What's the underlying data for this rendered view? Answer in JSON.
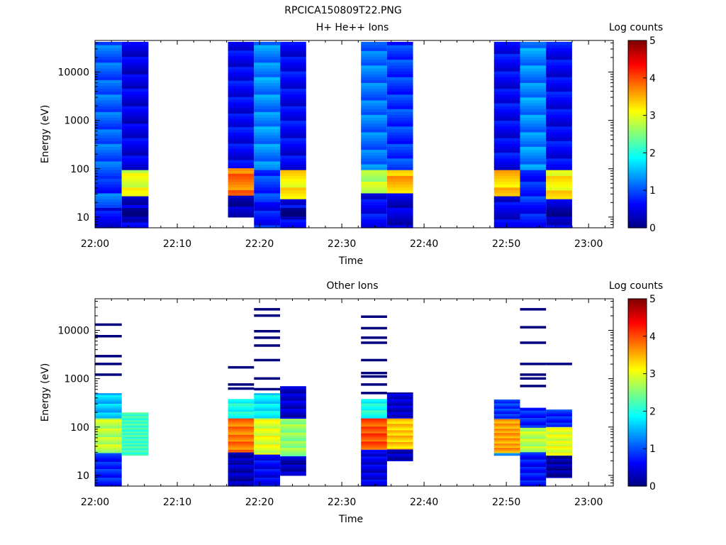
{
  "page_title": "RPCICA150809T22.PNG",
  "colorbar": {
    "label": "Log counts",
    "ticks": [
      "0",
      "1",
      "2",
      "3",
      "4",
      "5"
    ],
    "stops": [
      "#00007f",
      "#0000ff",
      "#007fff",
      "#00ffff",
      "#7fff7f",
      "#ffff00",
      "#ff7f00",
      "#ff0000",
      "#7f0000"
    ]
  },
  "chart_data": [
    {
      "type": "heatmap",
      "title": "H+ He++ Ions",
      "xlabel": "Time",
      "ylabel": "Energy (eV)",
      "yscale": "log",
      "ylim": [
        6,
        45000
      ],
      "xlim": [
        "22:00",
        "23:03"
      ],
      "clim": [
        0,
        5
      ],
      "x_ticks": [
        "22:00",
        "22:10",
        "22:20",
        "22:30",
        "22:40",
        "22:50",
        "23:00"
      ],
      "y_ticks": [
        "10",
        "100",
        "1000",
        "10000"
      ],
      "colorbar_label": "Log counts",
      "columns": [
        {
          "t_start": "22:00:00",
          "t_end": "22:03:15",
          "e_min": 6,
          "e_max": 42000,
          "bands": [
            {
              "e": [
                6,
                40000
              ],
              "v": 1.1
            },
            {
              "e": [
                30,
                60
              ],
              "v": 0.8
            },
            {
              "e": [
                6,
                15
              ],
              "v": 0.6
            }
          ]
        },
        {
          "t_start": "22:03:15",
          "t_end": "22:06:30",
          "e_min": 6,
          "e_max": 42000,
          "bands": [
            {
              "e": [
                100,
                40000
              ],
              "v": 0.5
            },
            {
              "e": [
                28,
                100
              ],
              "v": 3.0
            },
            {
              "e": [
                15,
                28
              ],
              "v": 0.4
            },
            {
              "e": [
                6,
                10
              ],
              "v": 0.5
            }
          ]
        },
        {
          "t_start": "22:16:10",
          "t_end": "22:19:20",
          "e_min": 10,
          "e_max": 42000,
          "bands": [
            {
              "e": [
                100,
                40000
              ],
              "v": 0.6
            },
            {
              "e": [
                30,
                100
              ],
              "v": 3.8
            },
            {
              "e": [
                10,
                30
              ],
              "v": 0.3
            }
          ]
        },
        {
          "t_start": "22:19:20",
          "t_end": "22:22:30",
          "e_min": 6,
          "e_max": 42000,
          "bands": [
            {
              "e": [
                100,
                40000
              ],
              "v": 1.3
            },
            {
              "e": [
                20,
                100
              ],
              "v": 0.9
            },
            {
              "e": [
                6,
                20
              ],
              "v": 0.7
            }
          ]
        },
        {
          "t_start": "22:22:30",
          "t_end": "22:25:40",
          "e_min": 6,
          "e_max": 42000,
          "bands": [
            {
              "e": [
                100,
                40000
              ],
              "v": 0.6
            },
            {
              "e": [
                25,
                100
              ],
              "v": 3.2
            },
            {
              "e": [
                15,
                25
              ],
              "v": 0.6
            },
            {
              "e": [
                6,
                10
              ],
              "v": 0.5
            }
          ]
        },
        {
          "t_start": "22:32:20",
          "t_end": "22:35:30",
          "e_min": 6,
          "e_max": 42000,
          "bands": [
            {
              "e": [
                100,
                40000
              ],
              "v": 1.2
            },
            {
              "e": [
                30,
                100
              ],
              "v": 2.8
            },
            {
              "e": [
                6,
                30
              ],
              "v": 0.6
            }
          ]
        },
        {
          "t_start": "22:35:30",
          "t_end": "22:38:40",
          "e_min": 6,
          "e_max": 42000,
          "bands": [
            {
              "e": [
                100,
                40000
              ],
              "v": 0.9
            },
            {
              "e": [
                30,
                100
              ],
              "v": 3.5
            },
            {
              "e": [
                6,
                30
              ],
              "v": 0.4
            }
          ]
        },
        {
          "t_start": "22:48:30",
          "t_end": "22:51:40",
          "e_min": 6,
          "e_max": 42000,
          "bands": [
            {
              "e": [
                100,
                40000
              ],
              "v": 0.6
            },
            {
              "e": [
                28,
                100
              ],
              "v": 3.4
            },
            {
              "e": [
                6,
                28
              ],
              "v": 0.5
            }
          ]
        },
        {
          "t_start": "22:51:40",
          "t_end": "22:54:50",
          "e_min": 6,
          "e_max": 42000,
          "bands": [
            {
              "e": [
                100,
                40000
              ],
              "v": 1.3
            },
            {
              "e": [
                20,
                100
              ],
              "v": 0.8
            },
            {
              "e": [
                6,
                20
              ],
              "v": 0.7
            }
          ]
        },
        {
          "t_start": "22:54:50",
          "t_end": "22:58:00",
          "e_min": 6,
          "e_max": 42000,
          "bands": [
            {
              "e": [
                100,
                40000
              ],
              "v": 0.6
            },
            {
              "e": [
                25,
                100
              ],
              "v": 3.2
            },
            {
              "e": [
                15,
                25
              ],
              "v": 0.6
            },
            {
              "e": [
                6,
                10
              ],
              "v": 0.5
            }
          ]
        }
      ]
    },
    {
      "type": "heatmap",
      "title": "Other Ions",
      "xlabel": "Time",
      "ylabel": "Energy (eV)",
      "yscale": "log",
      "ylim": [
        6,
        45000
      ],
      "xlim": [
        "22:00",
        "23:03"
      ],
      "clim": [
        0,
        5
      ],
      "x_ticks": [
        "22:00",
        "22:10",
        "22:20",
        "22:30",
        "22:40",
        "22:50",
        "23:00"
      ],
      "y_ticks": [
        "10",
        "100",
        "1000",
        "10000"
      ],
      "colorbar_label": "Log counts",
      "columns": [
        {
          "t_start": "22:00:00",
          "t_end": "22:03:15",
          "e_min": 6,
          "e_max": 500,
          "bands": [
            {
              "e": [
                150,
                500
              ],
              "v": 1.6
            },
            {
              "e": [
                30,
                150
              ],
              "v": 2.8
            },
            {
              "e": [
                6,
                30
              ],
              "v": 0.8
            }
          ],
          "lines": [
            13000,
            7500,
            2900,
            2000,
            1200
          ]
        },
        {
          "t_start": "22:03:15",
          "t_end": "22:06:30",
          "e_min": 26,
          "e_max": 200,
          "bands": [
            {
              "e": [
                26,
                200
              ],
              "v": 2.2
            }
          ]
        },
        {
          "t_start": "22:16:10",
          "t_end": "22:19:20",
          "e_min": 6,
          "e_max": 380,
          "bands": [
            {
              "e": [
                150,
                380
              ],
              "v": 2.0
            },
            {
              "e": [
                30,
                150
              ],
              "v": 3.8
            },
            {
              "e": [
                6,
                30
              ],
              "v": 0.3
            }
          ],
          "lines": [
            1700,
            750,
            620
          ]
        },
        {
          "t_start": "22:19:20",
          "t_end": "22:22:30",
          "e_min": 6,
          "e_max": 500,
          "bands": [
            {
              "e": [
                150,
                500
              ],
              "v": 1.8
            },
            {
              "e": [
                28,
                150
              ],
              "v": 3.0
            },
            {
              "e": [
                6,
                28
              ],
              "v": 0.6
            }
          ],
          "lines": [
            27000,
            20000,
            9500,
            7000,
            4800,
            2400,
            1000,
            600
          ]
        },
        {
          "t_start": "22:22:30",
          "t_end": "22:25:40",
          "e_min": 10,
          "e_max": 700,
          "bands": [
            {
              "e": [
                150,
                700
              ],
              "v": 0.4
            },
            {
              "e": [
                26,
                150
              ],
              "v": 2.6
            },
            {
              "e": [
                10,
                26
              ],
              "v": 0.3
            }
          ]
        },
        {
          "t_start": "22:32:20",
          "t_end": "22:35:30",
          "e_min": 6,
          "e_max": 380,
          "bands": [
            {
              "e": [
                150,
                380
              ],
              "v": 2.0
            },
            {
              "e": [
                35,
                150
              ],
              "v": 4.0
            },
            {
              "e": [
                6,
                35
              ],
              "v": 0.5
            }
          ],
          "lines": [
            19000,
            11000,
            7000,
            5500,
            2400,
            1300,
            1100,
            750,
            500
          ]
        },
        {
          "t_start": "22:35:30",
          "t_end": "22:38:40",
          "e_min": 20,
          "e_max": 520,
          "bands": [
            {
              "e": [
                150,
                520
              ],
              "v": 0.4
            },
            {
              "e": [
                35,
                150
              ],
              "v": 3.4
            },
            {
              "e": [
                20,
                35
              ],
              "v": 0.3
            }
          ]
        },
        {
          "t_start": "22:48:30",
          "t_end": "22:51:40",
          "e_min": 26,
          "e_max": 370,
          "bands": [
            {
              "e": [
                150,
                370
              ],
              "v": 0.9
            },
            {
              "e": [
                30,
                150
              ],
              "v": 3.6
            },
            {
              "e": [
                26,
                30
              ],
              "v": 1.2
            }
          ]
        },
        {
          "t_start": "22:51:40",
          "t_end": "22:54:50",
          "e_min": 6,
          "e_max": 250,
          "bands": [
            {
              "e": [
                100,
                250
              ],
              "v": 0.8
            },
            {
              "e": [
                30,
                100
              ],
              "v": 2.8
            },
            {
              "e": [
                6,
                30
              ],
              "v": 0.7
            }
          ],
          "lines": [
            27000,
            11500,
            5500,
            2000,
            1200,
            1000,
            700
          ]
        },
        {
          "t_start": "22:54:50",
          "t_end": "22:58:00",
          "e_min": 9,
          "e_max": 230,
          "bands": [
            {
              "e": [
                100,
                230
              ],
              "v": 0.8
            },
            {
              "e": [
                26,
                100
              ],
              "v": 3.0
            },
            {
              "e": [
                9,
                26
              ],
              "v": 0.2
            }
          ],
          "lines": [
            2000
          ]
        }
      ]
    }
  ]
}
